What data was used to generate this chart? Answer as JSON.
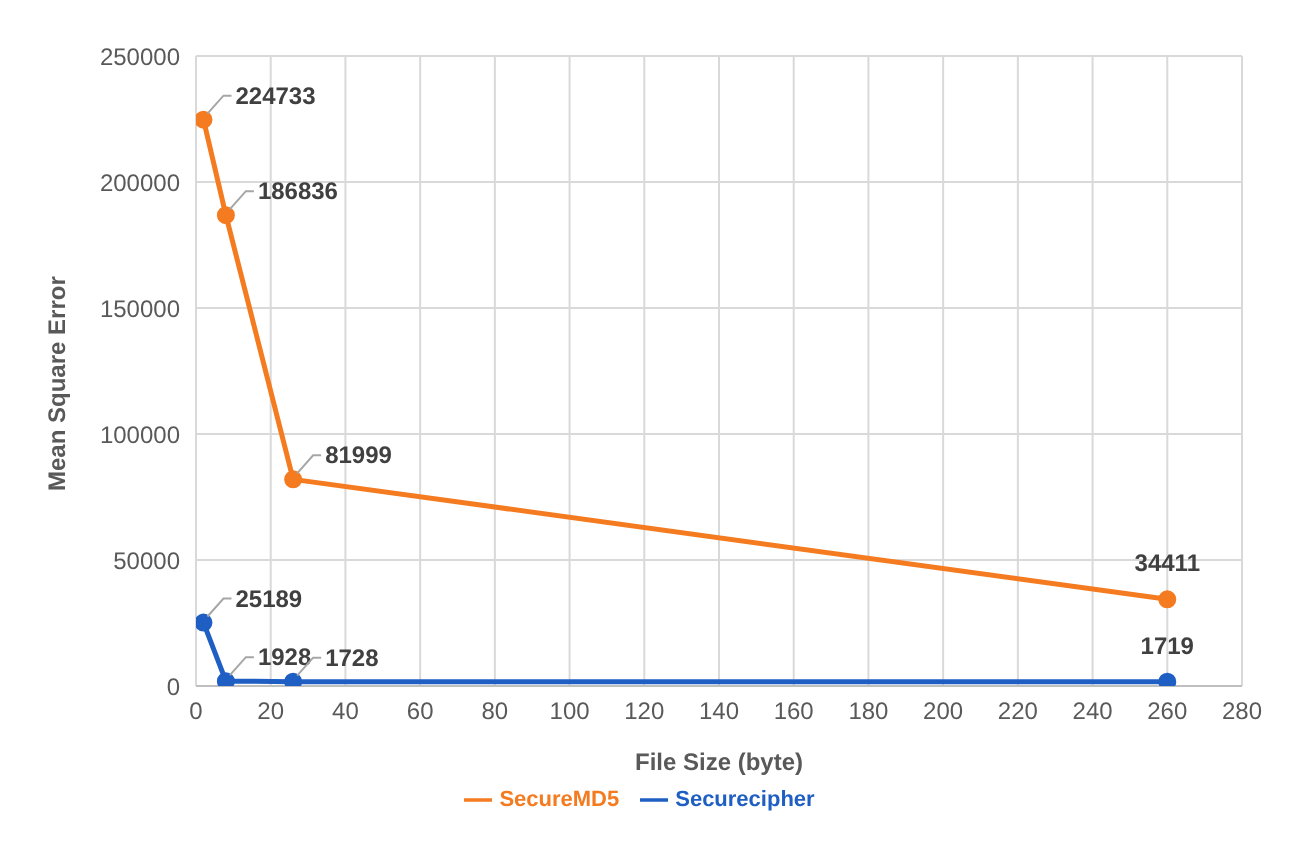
{
  "chart_data": {
    "type": "line",
    "xlabel": "File Size (byte)",
    "ylabel": "Mean Square Error",
    "xlim": [
      0,
      280
    ],
    "xticks": [
      0,
      20,
      40,
      60,
      80,
      100,
      120,
      140,
      160,
      180,
      200,
      220,
      240,
      260,
      280
    ],
    "ylim": [
      0,
      250000
    ],
    "yticks": [
      0,
      50000,
      100000,
      150000,
      200000,
      250000
    ],
    "series": [
      {
        "name": "Securecipher",
        "color": "#1f5fc4",
        "x": [
          2,
          8,
          26,
          260
        ],
        "values": [
          25189,
          1928,
          1728,
          1719
        ]
      },
      {
        "name": "SecureMD5",
        "color": "#f47b20",
        "x": [
          2,
          8,
          26,
          260
        ],
        "values": [
          224733,
          186836,
          81999,
          34411
        ]
      }
    ],
    "data_labels": true,
    "grid": true,
    "legend": "bottom",
    "marker": "circle",
    "line_style": "solid"
  }
}
